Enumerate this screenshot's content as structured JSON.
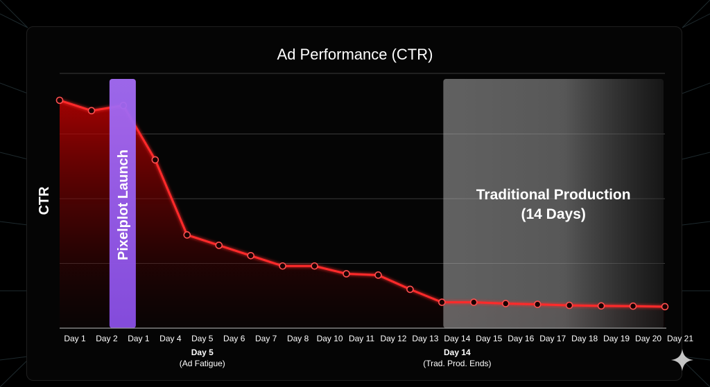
{
  "chart_data": {
    "type": "line",
    "title": "Ad Performance (CTR)",
    "ylabel": "CTR",
    "xlabel": "",
    "ylim": [
      0,
      100
    ],
    "grid": true,
    "categories": [
      "Day 1",
      "Day 2",
      "Day 1",
      "Day 4",
      "Day 5",
      "Day 6",
      "Day 7",
      "Day 8",
      "Day 10",
      "Day 11",
      "Day 12",
      "Day 13",
      "Day 14",
      "Day 15",
      "Day 16",
      "Day 17",
      "Day 18",
      "Day 19",
      "Day 20",
      "Day 21"
    ],
    "series": [
      {
        "name": "CTR",
        "color": "#ff2a2a",
        "values": [
          88,
          84,
          86,
          65,
          36,
          32,
          28,
          24,
          24,
          21,
          20.5,
          15,
          10,
          10,
          9.5,
          9.2,
          8.8,
          8.6,
          8.5,
          8.3
        ]
      }
    ],
    "bands": [
      {
        "label": "Pixelplot Launch",
        "color": "#9b5cf0",
        "category_index": 2
      },
      {
        "label_line1": "Traditional Production",
        "label_line2": "(14 Days)",
        "color": "#8c8c8c",
        "from_index": 12,
        "to_index": 19
      }
    ],
    "annotations": [
      {
        "category_index": 4,
        "title": "Day 5",
        "subtitle": "(Ad Fatigue)"
      },
      {
        "category_index": 12,
        "title": "Day 14",
        "subtitle": "(Trad. Prod. Ends)"
      }
    ]
  }
}
